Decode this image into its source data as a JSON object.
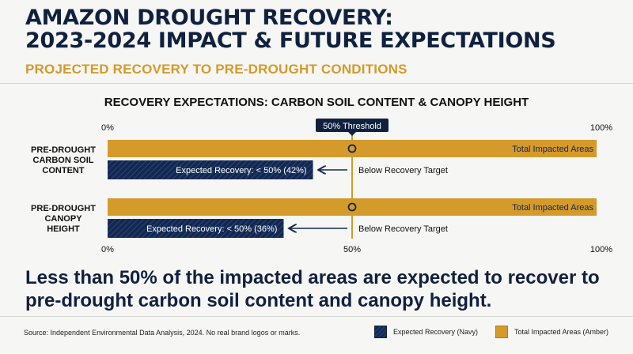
{
  "header": {
    "title_line1": "AMAZON DROUGHT RECOVERY:",
    "title_line2": "2023-2024 IMPACT & FUTURE EXPECTATIONS",
    "subtitle": "PROJECTED RECOVERY TO PRE-DROUGHT CONDITIONS"
  },
  "chart_data": {
    "type": "bar",
    "orientation": "horizontal",
    "title": "RECOVERY EXPECTATIONS: CARBON SOIL CONTENT & CANOPY HEIGHT",
    "categories": [
      "PRE-DROUGHT CARBON SOIL CONTENT",
      "PRE-DROUGHT CANOPY HEIGHT"
    ],
    "category_lines": [
      [
        "PRE-DROUGHT",
        "CARBON SOIL",
        "CONTENT"
      ],
      [
        "PRE-DROUGHT",
        "CANOPY",
        "HEIGHT"
      ]
    ],
    "series": [
      {
        "name": "Total Impacted Areas",
        "values": [
          100,
          100
        ],
        "color": "#d49a2a",
        "bar_label": "Total Impacted Areas"
      },
      {
        "name": "Expected Recovery",
        "values": [
          42,
          36
        ],
        "color": "#14284f",
        "bar_labels": [
          "Expected Recovery: < 50% (42%)",
          "Expected Recovery: < 50% (36%)"
        ]
      }
    ],
    "threshold": {
      "value": 50,
      "label": "50% Threshold"
    },
    "annotation": "Below Recovery Target",
    "xlim": [
      0,
      100
    ],
    "top_ticks": [
      "0%",
      "100%"
    ],
    "bottom_ticks": [
      "0%",
      "50%",
      "100%"
    ],
    "grid": false
  },
  "takeaway": "Less than 50% of the impacted areas are expected to recover to pre-drought carbon soil content and canopy height.",
  "footer": {
    "source": "Source: Independent Environmental Data Analysis, 2024. No real brand logos or marks.",
    "legend_navy": "Expected Recovery (Navy)",
    "legend_amber": "Total Impacted Areas (Amber)"
  },
  "colors": {
    "navy": "#14284f",
    "amber": "#d49a2a",
    "background": "#f6f6f4"
  }
}
